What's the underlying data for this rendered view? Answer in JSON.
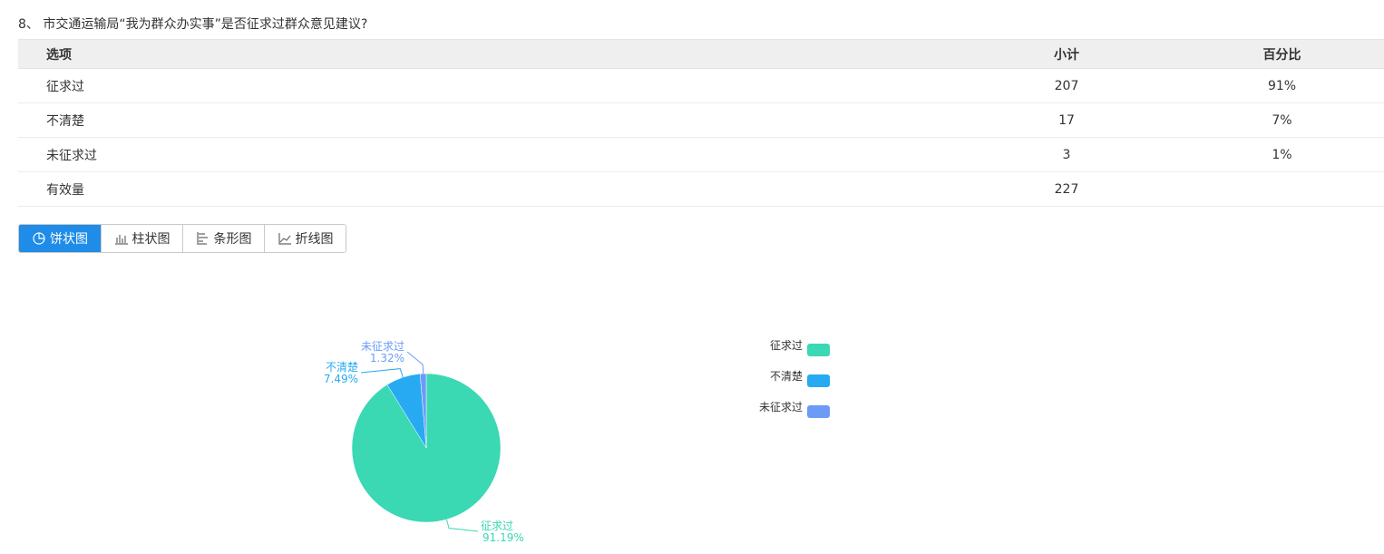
{
  "question": "8、 市交通运输局“我为群众办实事”是否征求过群众意见建议?",
  "table": {
    "headers": [
      "选项",
      "小计",
      "百分比"
    ],
    "rows": [
      {
        "option": "征求过",
        "count": "207",
        "percent": "91%"
      },
      {
        "option": "不清楚",
        "count": "17",
        "percent": "7%"
      },
      {
        "option": "未征求过",
        "count": "3",
        "percent": "1%"
      },
      {
        "option": "有效量",
        "count": "227",
        "percent": ""
      }
    ]
  },
  "tabs": [
    {
      "label": "饼状图",
      "icon": "pie-chart-icon",
      "active": true
    },
    {
      "label": "柱状图",
      "icon": "bar-chart-icon",
      "active": false
    },
    {
      "label": "条形图",
      "icon": "horizontal-bar-chart-icon",
      "active": false
    },
    {
      "label": "折线图",
      "icon": "line-chart-icon",
      "active": false
    }
  ],
  "chart_data": {
    "type": "pie",
    "categories": [
      "征求过",
      "不清楚",
      "未征求过"
    ],
    "values": [
      207,
      17,
      3
    ],
    "percent_labels": [
      "91.19%",
      "7.49%",
      "1.32%"
    ],
    "colors": [
      "#3ad8b3",
      "#27aaf2",
      "#6c9bf7"
    ],
    "legend": "right"
  }
}
